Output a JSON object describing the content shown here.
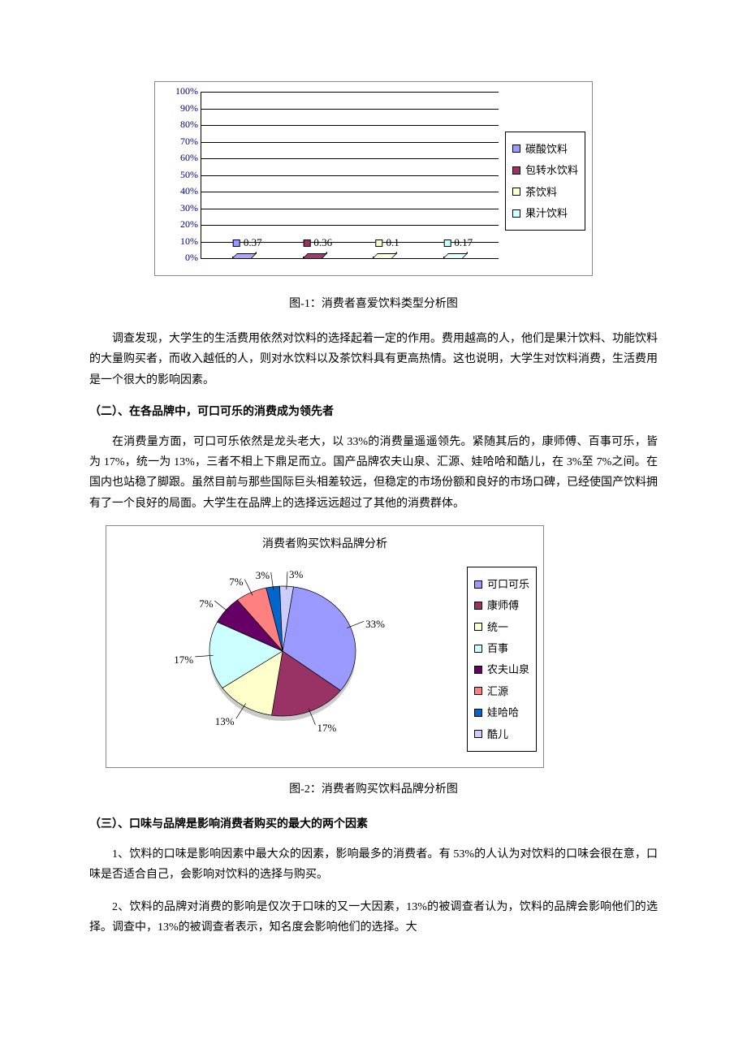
{
  "bar_chart": {
    "type": "bar",
    "ylim": [
      0,
      100
    ],
    "ytick_step": 10,
    "y_suffix": "%",
    "grid_color": "#000000",
    "label_color": "#000080",
    "bars": [
      {
        "label": "碳酸饮料",
        "value": 37,
        "display": "0.37",
        "color": "#9999ff"
      },
      {
        "label": "包转水饮料",
        "value": 36,
        "display": "0.36",
        "color": "#993366"
      },
      {
        "label": "茶饮料",
        "value": 10,
        "display": "0.1",
        "color": "#ffffcc"
      },
      {
        "label": "果汁饮料",
        "value": 17,
        "display": "0.17",
        "color": "#ccffff"
      }
    ]
  },
  "caption1": "图-1：消费者喜爱饮料类型分析图",
  "para1": "调查发现，大学生的生活费用依然对饮料的选择起着一定的作用。费用越高的人，他们是果汁饮料、功能饮料的大量购买者，而收入越低的人，则对水饮料以及茶饮料具有更高热情。这也说明，大学生对饮料消费，生活费用是一个很大的影响因素。",
  "heading2": "（二）、在各品牌中，可口可乐的消费成为领先者",
  "para2": "在消费量方面，可口可乐依然是龙头老大，以 33%的消费量遥遥领先。紧随其后的，康师傅、百事可乐，皆为 17%，统一为 13%，三者不相上下鼎足而立。国产品牌农夫山泉、汇源、娃哈哈和酷儿，在 3%至 7%之间。在国内也站稳了脚跟。虽然目前与那些国际巨头相差较远，但稳定的市场份额和良好的市场口碑，已经使国产饮料拥有了一个良好的局面。大学生在品牌上的选择远远超过了其他的消费群体。",
  "pie_chart": {
    "type": "pie",
    "title": "消费者购买饮料品牌分析",
    "slices": [
      {
        "label": "可口可乐",
        "value": 33,
        "display": "33%",
        "color": "#9999ff"
      },
      {
        "label": "康师傅",
        "value": 17,
        "display": "17%",
        "color": "#993366"
      },
      {
        "label": "统一",
        "value": 13,
        "display": "13%",
        "color": "#ffffcc"
      },
      {
        "label": "百事",
        "value": 17,
        "display": "17%",
        "color": "#ccffff"
      },
      {
        "label": "农夫山泉",
        "value": 7,
        "display": "7%",
        "color": "#660066"
      },
      {
        "label": "汇源",
        "value": 7,
        "display": "7%",
        "color": "#ff8080"
      },
      {
        "label": "娃哈哈",
        "value": 3,
        "display": "3%",
        "color": "#0066cc"
      },
      {
        "label": "酷儿",
        "value": 3,
        "display": "3%",
        "color": "#ccccff"
      }
    ]
  },
  "caption2": "图-2：消费者购买饮料品牌分析图",
  "heading3": "（三）、口味与品牌是影响消费者购买的最大的两个因素",
  "para3": "1、饮料的口味是影响因素中最大众的因素，影响最多的消费者。有 53%的人认为对饮料的口味会很在意，口味是否适合自己，会影响对饮料的选择与购买。",
  "para4": "2、饮料的品牌对消费的影响是仅次于口味的又一大因素，13%的被调查者认为，饮料的品牌会影响他们的选择。调查中，13%的被调查者表示，知名度会影响他们的选择。大"
}
